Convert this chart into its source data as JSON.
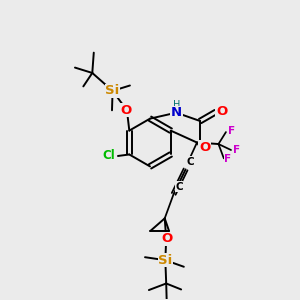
{
  "bg_color": "#ebebeb",
  "colors": {
    "O": "#ff0000",
    "N": "#0000cc",
    "Si": "#cc8800",
    "Cl": "#00bb00",
    "F": "#cc00cc",
    "C_alkyne": "#000000",
    "H": "#007070",
    "bond": "#000000"
  },
  "lw": 1.4,
  "fs": 7.5
}
